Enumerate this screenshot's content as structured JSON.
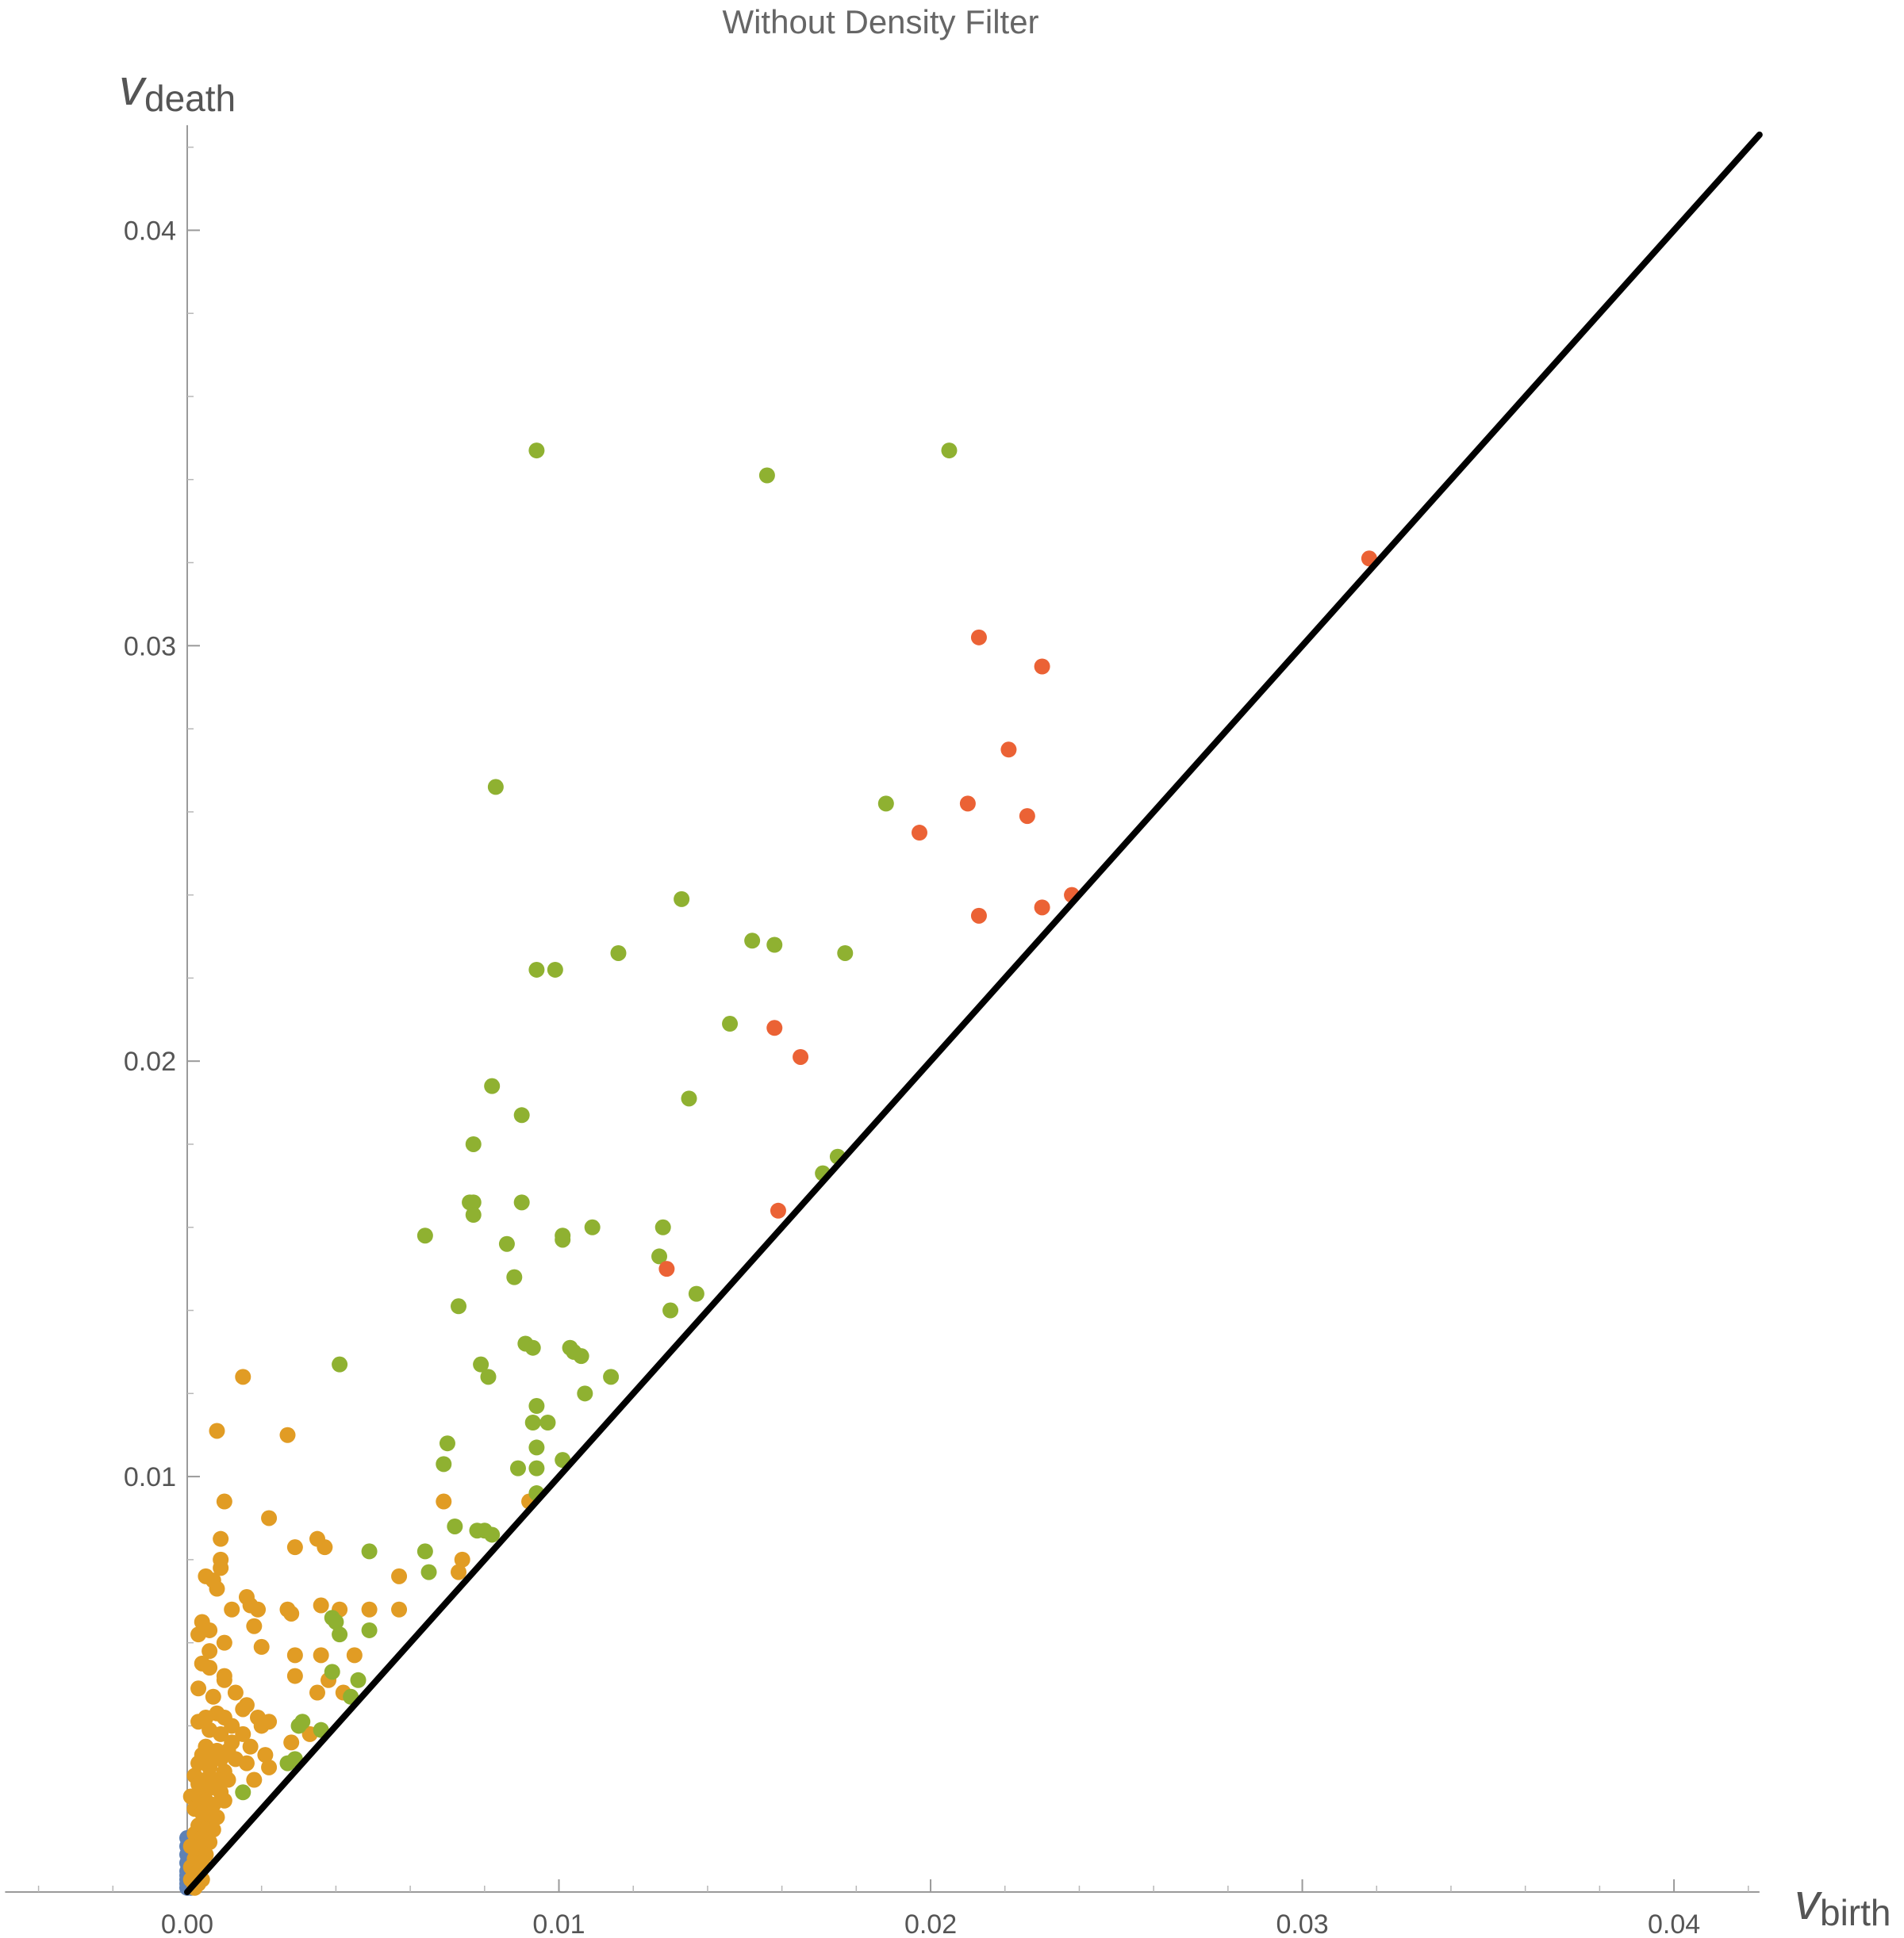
{
  "chart_data": {
    "type": "scatter",
    "title": "Without Density Filter",
    "xlabel": {
      "main": "v",
      "sub": "birth"
    },
    "ylabel": {
      "main": "v",
      "sub": "death"
    },
    "xlim": [
      -0.0049,
      0.0423
    ],
    "ylim": [
      0,
      0.0423
    ],
    "x_ticks": [
      0.0,
      0.01,
      0.02,
      0.03,
      0.04
    ],
    "x_tick_labels": [
      "0.00",
      "0.01",
      "0.02",
      "0.03",
      "0.04"
    ],
    "y_ticks": [
      0.01,
      0.02,
      0.03,
      0.04
    ],
    "y_tick_labels": [
      "0.01",
      "0.02",
      "0.03",
      "0.04"
    ],
    "diagonal": {
      "from": [
        0,
        0
      ],
      "to": [
        0.0423,
        0.0423
      ],
      "color": "#000000"
    },
    "grid": false,
    "legend": "none",
    "series": [
      {
        "color": "#5e81b5",
        "points": [
          [
            0.0,
            0.0013
          ],
          [
            0.0,
            0.0011
          ],
          [
            0.0,
            0.0009
          ],
          [
            0.0,
            0.0007
          ],
          [
            0.0,
            0.0005
          ],
          [
            0.0,
            0.0004
          ],
          [
            0.0,
            0.0003
          ],
          [
            0.0,
            0.0002
          ],
          [
            0.0001,
            0.0001
          ],
          [
            0.0,
            0.0001
          ]
        ]
      },
      {
        "color": "#e19c24",
        "points": [
          [
            0.0015,
            0.0124
          ],
          [
            0.0008,
            0.0111
          ],
          [
            0.0027,
            0.011
          ],
          [
            0.001,
            0.0094
          ],
          [
            0.0022,
            0.009
          ],
          [
            0.0009,
            0.0085
          ],
          [
            0.0029,
            0.0083
          ],
          [
            0.0035,
            0.0085
          ],
          [
            0.0037,
            0.0083
          ],
          [
            0.0009,
            0.008
          ],
          [
            0.0009,
            0.0078
          ],
          [
            0.0005,
            0.0076
          ],
          [
            0.0007,
            0.0075
          ],
          [
            0.0008,
            0.0073
          ],
          [
            0.0016,
            0.0071
          ],
          [
            0.0017,
            0.0069
          ],
          [
            0.0012,
            0.0068
          ],
          [
            0.0019,
            0.0068
          ],
          [
            0.0036,
            0.0069
          ],
          [
            0.0041,
            0.0068
          ],
          [
            0.0049,
            0.0068
          ],
          [
            0.0057,
            0.0076
          ],
          [
            0.0057,
            0.0068
          ],
          [
            0.0028,
            0.0067
          ],
          [
            0.0027,
            0.0068
          ],
          [
            0.0004,
            0.0065
          ],
          [
            0.0006,
            0.0063
          ],
          [
            0.0003,
            0.0062
          ],
          [
            0.001,
            0.006
          ],
          [
            0.0018,
            0.0064
          ],
          [
            0.0006,
            0.0058
          ],
          [
            0.002,
            0.0059
          ],
          [
            0.0029,
            0.0057
          ],
          [
            0.0036,
            0.0057
          ],
          [
            0.0045,
            0.0057
          ],
          [
            0.0004,
            0.0055
          ],
          [
            0.0006,
            0.0054
          ],
          [
            0.001,
            0.0052
          ],
          [
            0.001,
            0.0051
          ],
          [
            0.0003,
            0.0049
          ],
          [
            0.0007,
            0.0047
          ],
          [
            0.0013,
            0.0048
          ],
          [
            0.0029,
            0.0052
          ],
          [
            0.0038,
            0.0051
          ],
          [
            0.0035,
            0.0048
          ],
          [
            0.0042,
            0.0048
          ],
          [
            0.0016,
            0.0045
          ],
          [
            0.0015,
            0.0044
          ],
          [
            0.0008,
            0.0043
          ],
          [
            0.0005,
            0.0042
          ],
          [
            0.001,
            0.0042
          ],
          [
            0.0012,
            0.004
          ],
          [
            0.0019,
            0.0042
          ],
          [
            0.002,
            0.004
          ],
          [
            0.0022,
            0.0041
          ],
          [
            0.0003,
            0.0041
          ],
          [
            0.0006,
            0.0039
          ],
          [
            0.0009,
            0.0038
          ],
          [
            0.0015,
            0.0038
          ],
          [
            0.0028,
            0.0036
          ],
          [
            0.0033,
            0.0038
          ],
          [
            0.0012,
            0.0036
          ],
          [
            0.0005,
            0.0035
          ],
          [
            0.0008,
            0.0034
          ],
          [
            0.0011,
            0.0034
          ],
          [
            0.0017,
            0.0035
          ],
          [
            0.0004,
            0.0033
          ],
          [
            0.0007,
            0.0032
          ],
          [
            0.0009,
            0.0032
          ],
          [
            0.0013,
            0.0032
          ],
          [
            0.0016,
            0.0031
          ],
          [
            0.0021,
            0.0033
          ],
          [
            0.0003,
            0.0031
          ],
          [
            0.0006,
            0.003
          ],
          [
            0.001,
            0.0029
          ],
          [
            0.0002,
            0.0028
          ],
          [
            0.0005,
            0.0027
          ],
          [
            0.0008,
            0.0027
          ],
          [
            0.0011,
            0.0027
          ],
          [
            0.0018,
            0.0027
          ],
          [
            0.0022,
            0.003
          ],
          [
            0.0003,
            0.0026
          ],
          [
            0.0006,
            0.0025
          ],
          [
            0.0009,
            0.0024
          ],
          [
            0.0001,
            0.0023
          ],
          [
            0.0003,
            0.0023
          ],
          [
            0.0005,
            0.0022
          ],
          [
            0.0007,
            0.0021
          ],
          [
            0.001,
            0.0022
          ],
          [
            0.0002,
            0.002
          ],
          [
            0.0004,
            0.0019
          ],
          [
            0.0006,
            0.0018
          ],
          [
            0.0008,
            0.0018
          ],
          [
            0.0003,
            0.0016
          ],
          [
            0.0005,
            0.0015
          ],
          [
            0.0007,
            0.0015
          ],
          [
            0.0002,
            0.0014
          ],
          [
            0.0004,
            0.0013
          ],
          [
            0.0006,
            0.0012
          ],
          [
            0.0001,
            0.0011
          ],
          [
            0.0003,
            0.001
          ],
          [
            0.0005,
            0.0009
          ],
          [
            0.0002,
            0.0008
          ],
          [
            0.0004,
            0.0007
          ],
          [
            0.0001,
            0.0006
          ],
          [
            0.0003,
            0.0005
          ],
          [
            0.0002,
            0.0004
          ],
          [
            0.0004,
            0.0003
          ],
          [
            0.0001,
            0.0003
          ],
          [
            0.0003,
            0.0002
          ],
          [
            0.0002,
            0.0001
          ],
          [
            0.0074,
            0.008
          ],
          [
            0.0073,
            0.0077
          ],
          [
            0.0069,
            0.0094
          ],
          [
            0.0092,
            0.0094
          ]
        ]
      },
      {
        "color": "#8fb131",
        "points": [
          [
            0.0094,
            0.0347
          ],
          [
            0.0205,
            0.0347
          ],
          [
            0.0156,
            0.0341
          ],
          [
            0.0083,
            0.0266
          ],
          [
            0.0188,
            0.0262
          ],
          [
            0.0133,
            0.0239
          ],
          [
            0.0152,
            0.0229
          ],
          [
            0.0158,
            0.0228
          ],
          [
            0.0116,
            0.0226
          ],
          [
            0.0177,
            0.0226
          ],
          [
            0.0094,
            0.0222
          ],
          [
            0.0099,
            0.0222
          ],
          [
            0.0146,
            0.0209
          ],
          [
            0.0082,
            0.0194
          ],
          [
            0.0135,
            0.0191
          ],
          [
            0.009,
            0.0187
          ],
          [
            0.0077,
            0.018
          ],
          [
            0.0076,
            0.0166
          ],
          [
            0.0077,
            0.0166
          ],
          [
            0.009,
            0.0166
          ],
          [
            0.0077,
            0.0163
          ],
          [
            0.0175,
            0.0177
          ],
          [
            0.0171,
            0.0173
          ],
          [
            0.0064,
            0.0158
          ],
          [
            0.0101,
            0.0158
          ],
          [
            0.0101,
            0.0157
          ],
          [
            0.0109,
            0.016
          ],
          [
            0.0128,
            0.016
          ],
          [
            0.0086,
            0.0156
          ],
          [
            0.0127,
            0.0153
          ],
          [
            0.0088,
            0.0148
          ],
          [
            0.0073,
            0.0141
          ],
          [
            0.0137,
            0.0144
          ],
          [
            0.013,
            0.014
          ],
          [
            0.0091,
            0.0132
          ],
          [
            0.0093,
            0.0131
          ],
          [
            0.0103,
            0.0131
          ],
          [
            0.0104,
            0.013
          ],
          [
            0.0106,
            0.0129
          ],
          [
            0.0041,
            0.0127
          ],
          [
            0.0079,
            0.0127
          ],
          [
            0.0081,
            0.0124
          ],
          [
            0.0114,
            0.0124
          ],
          [
            0.0107,
            0.012
          ],
          [
            0.0094,
            0.0117
          ],
          [
            0.0093,
            0.0113
          ],
          [
            0.0097,
            0.0113
          ],
          [
            0.007,
            0.0108
          ],
          [
            0.0094,
            0.0107
          ],
          [
            0.0094,
            0.0102
          ],
          [
            0.0089,
            0.0102
          ],
          [
            0.0101,
            0.0104
          ],
          [
            0.0069,
            0.0103
          ],
          [
            0.0094,
            0.0096
          ],
          [
            0.0072,
            0.0088
          ],
          [
            0.0078,
            0.0087
          ],
          [
            0.008,
            0.0087
          ],
          [
            0.0082,
            0.0086
          ],
          [
            0.0049,
            0.0082
          ],
          [
            0.0064,
            0.0082
          ],
          [
            0.0065,
            0.0077
          ],
          [
            0.0039,
            0.0066
          ],
          [
            0.004,
            0.0065
          ],
          [
            0.0041,
            0.0062
          ],
          [
            0.0049,
            0.0063
          ],
          [
            0.0039,
            0.0053
          ],
          [
            0.0046,
            0.0051
          ],
          [
            0.0044,
            0.0047
          ],
          [
            0.003,
            0.004
          ],
          [
            0.0031,
            0.0041
          ],
          [
            0.0036,
            0.0039
          ],
          [
            0.0027,
            0.0031
          ],
          [
            0.0029,
            0.0032
          ],
          [
            0.0015,
            0.0024
          ]
        ]
      },
      {
        "color": "#eb6235",
        "points": [
          [
            0.0318,
            0.0321
          ],
          [
            0.0213,
            0.0302
          ],
          [
            0.023,
            0.0295
          ],
          [
            0.0221,
            0.0275
          ],
          [
            0.021,
            0.0262
          ],
          [
            0.0226,
            0.0259
          ],
          [
            0.0197,
            0.0255
          ],
          [
            0.0238,
            0.024
          ],
          [
            0.023,
            0.0237
          ],
          [
            0.0213,
            0.0235
          ],
          [
            0.0158,
            0.0208
          ],
          [
            0.0165,
            0.0201
          ],
          [
            0.0159,
            0.0164
          ],
          [
            0.0129,
            0.015
          ]
        ]
      }
    ]
  }
}
